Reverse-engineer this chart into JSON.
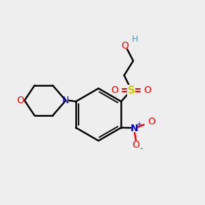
{
  "bg_color": "#eeeeee",
  "bond_color": "#000000",
  "O_color": "#ff0000",
  "N_color": "#0000cd",
  "S_color": "#cccc00",
  "H_color": "#5f8fa0",
  "figsize": [
    3.0,
    3.0
  ],
  "dpi": 100,
  "xlim": [
    0,
    10
  ],
  "ylim": [
    0,
    10
  ]
}
